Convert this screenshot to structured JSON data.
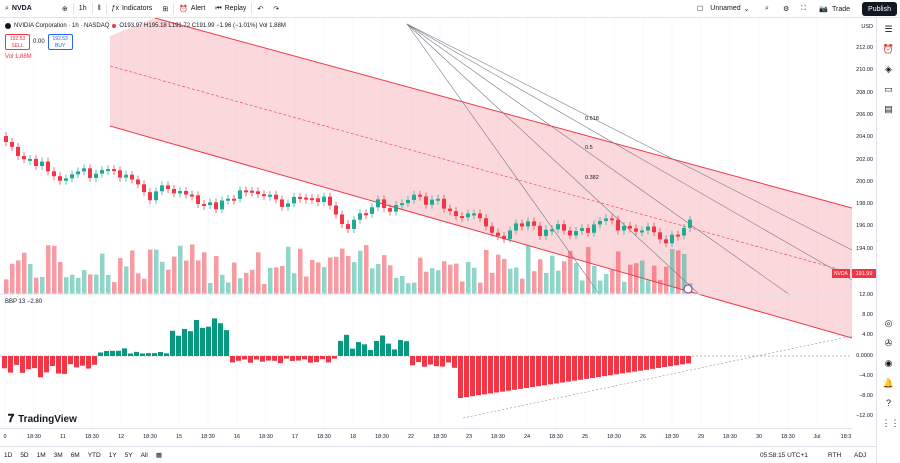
{
  "toolbar": {
    "symbol": "NVDA",
    "interval": "1h",
    "indicators": "Indicators",
    "alert": "Alert",
    "replay": "Replay",
    "layout_name": "Unnamed",
    "trade": "Trade",
    "publish": "Publish"
  },
  "legend": {
    "title": "NVIDIA Corporation · 1h · NASDAQ",
    "ohlc": "O193.97 H195.18 L191.72 C191.99 −1.96 (−1.01%) Vol 1.88M",
    "sell_price": "192.53",
    "sell_label": "SELL",
    "spread": "0.00",
    "buy_price": "192.53",
    "buy_label": "BUY",
    "vol": "Vol  1.88M",
    "bbp": "BBP 13  −2.80"
  },
  "price_axis": {
    "currency": "USD",
    "labels": [
      "212.00",
      "210.00",
      "208.00",
      "206.00",
      "204.00",
      "202.00",
      "200.00",
      "198.00",
      "196.00",
      "194.00"
    ],
    "last_price": "191.99",
    "symbol_tag": "NVDA",
    "osc_labels": [
      "12.00",
      "8.00",
      "4.00",
      "0.0000",
      "−4.00",
      "−8.00",
      "−12.00"
    ]
  },
  "fib": {
    "l618": "0.618",
    "l5": "0.5",
    "l382": "0.382"
  },
  "time_axis": {
    "labels": [
      "0",
      "18:30",
      "11",
      "18:30",
      "12",
      "18:30",
      "15",
      "18:30",
      "16",
      "18:30",
      "17",
      "18:30",
      "18",
      "18:30",
      "22",
      "18:30",
      "23",
      "18:30",
      "24",
      "18:30",
      "25",
      "18:30",
      "26",
      "18:30",
      "29",
      "18:30",
      "30",
      "18:30",
      "Jul",
      "18:3"
    ]
  },
  "bottom": {
    "ranges": [
      "1D",
      "5D",
      "1M",
      "3M",
      "6M",
      "YTD",
      "1Y",
      "5Y",
      "All"
    ],
    "clock": "05:58:15 UTC+1",
    "session": "RTH",
    "adj": "ADJ"
  },
  "brand": {
    "name": "TradingView"
  },
  "colors": {
    "up": "#22ab94",
    "down": "#f23645",
    "channel": "#f7a8b0"
  }
}
